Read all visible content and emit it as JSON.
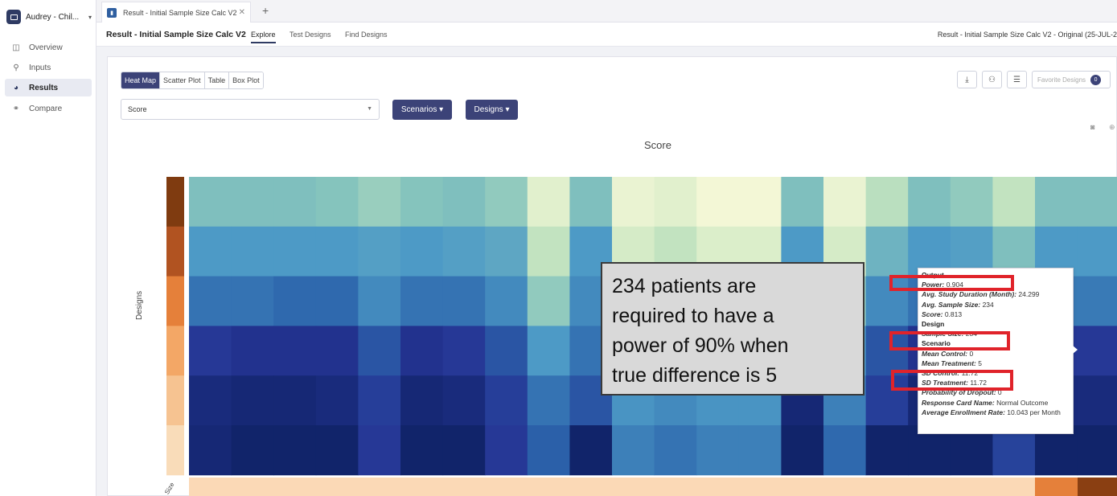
{
  "sidebar": {
    "project_name": "Audrey - Chil...",
    "items": [
      {
        "label": "Overview",
        "icon": "columns-icon"
      },
      {
        "label": "Inputs",
        "icon": "wrench-icon"
      },
      {
        "label": "Results",
        "icon": "pie-chart-icon"
      },
      {
        "label": "Compare",
        "icon": "link-icon"
      }
    ]
  },
  "tabs": [
    {
      "label": "Result - Initial Sample Size Calc V2"
    }
  ],
  "header": {
    "title": "Result - Initial Sample Size Calc V2",
    "nav": [
      "Explore",
      "Test Designs",
      "Find Designs"
    ],
    "right_text": "Result - Initial Sample Size Calc V2 - Original (25-JUL-2"
  },
  "toolbar": {
    "views": [
      "Heat Map",
      "Scatter Plot",
      "Table",
      "Box Plot"
    ],
    "metric": "Score",
    "scenarios_label": "Scenarios ▾",
    "designs_label": "Designs ▾",
    "favorite_label": "Favorite Designs",
    "favorite_count": "0"
  },
  "chart_data": {
    "type": "heatmap",
    "title": "Score",
    "ylabel": "Designs",
    "xlabel": "Size",
    "rows": 6,
    "cols": 22,
    "colorscale": [
      "#f9f9d9",
      "#c7e6c0",
      "#84c3bd",
      "#4d9ac6",
      "#2c64ab",
      "#253494",
      "#081d58"
    ],
    "matrix": [
      [
        0.35,
        0.35,
        0.35,
        0.33,
        0.28,
        0.33,
        0.35,
        0.3,
        0.08,
        0.35,
        0.05,
        0.08,
        0.02,
        0.02,
        0.35,
        0.05,
        0.2,
        0.35,
        0.3,
        0.18,
        0.35,
        0.35
      ],
      [
        0.5,
        0.5,
        0.5,
        0.5,
        0.48,
        0.5,
        0.48,
        0.45,
        0.18,
        0.5,
        0.12,
        0.18,
        0.1,
        0.1,
        0.5,
        0.12,
        0.4,
        0.5,
        0.48,
        0.35,
        0.5,
        0.5
      ],
      [
        0.62,
        0.62,
        0.65,
        0.65,
        0.55,
        0.62,
        0.62,
        0.55,
        0.3,
        0.55,
        0.25,
        0.3,
        0.25,
        0.25,
        0.62,
        0.3,
        0.55,
        0.62,
        0.6,
        0.45,
        0.6,
        0.6
      ],
      [
        0.82,
        0.85,
        0.85,
        0.85,
        0.72,
        0.85,
        0.82,
        0.72,
        0.5,
        0.62,
        0.42,
        0.45,
        0.42,
        0.42,
        0.82,
        0.5,
        0.72,
        0.85,
        0.8,
        0.62,
        0.82,
        0.82
      ],
      [
        0.9,
        0.92,
        0.92,
        0.9,
        0.8,
        0.92,
        0.9,
        0.8,
        0.62,
        0.72,
        0.52,
        0.55,
        0.52,
        0.52,
        0.92,
        0.58,
        0.8,
        0.92,
        0.9,
        0.7,
        0.9,
        0.9
      ],
      [
        0.92,
        0.95,
        0.95,
        0.95,
        0.82,
        0.95,
        0.95,
        0.82,
        0.68,
        0.95,
        0.58,
        0.62,
        0.58,
        0.58,
        0.95,
        0.65,
        0.95,
        0.95,
        0.95,
        0.78,
        0.95,
        0.95
      ]
    ],
    "row_colors": [
      "#7f3b10",
      "#b15321",
      "#e5803a",
      "#f3a766",
      "#f6c391",
      "#f9dcb9"
    ],
    "bottom_bar_colors": [
      "#fbd9b6",
      "#e5803a",
      "#8a3f12"
    ]
  },
  "callout": {
    "lines": [
      "234 patients are",
      "required to have a",
      "power of 90% when",
      "true difference is 5"
    ]
  },
  "tooltip": {
    "lines": [
      {
        "key": "Output",
        "val": "",
        "section": true
      },
      {
        "key": "Power:",
        "val": " 0.904"
      },
      {
        "key": "Avg. Study Duration (Month):",
        "val": " 24.299"
      },
      {
        "key": "Avg. Sample Size:",
        "val": " 234"
      },
      {
        "key": "Score:",
        "val": " 0.813"
      },
      {
        "key": "Design",
        "val": "",
        "section": true
      },
      {
        "key": "Sample Size:",
        "val": " 234"
      },
      {
        "key": "Scenario",
        "val": "",
        "section": true
      },
      {
        "key": "Mean Control:",
        "val": " 0"
      },
      {
        "key": "Mean Treatment:",
        "val": " 5"
      },
      {
        "key": "SD Control:",
        "val": " 11.72"
      },
      {
        "key": "SD Treatment:",
        "val": " 11.72"
      },
      {
        "key": "Probability of Dropout:",
        "val": " 0"
      },
      {
        "key": "Response Card Name:",
        "val": " Normal Outcome"
      },
      {
        "key": "Average Enrollment Rate:",
        "val": " 10.043 per Month"
      }
    ]
  }
}
